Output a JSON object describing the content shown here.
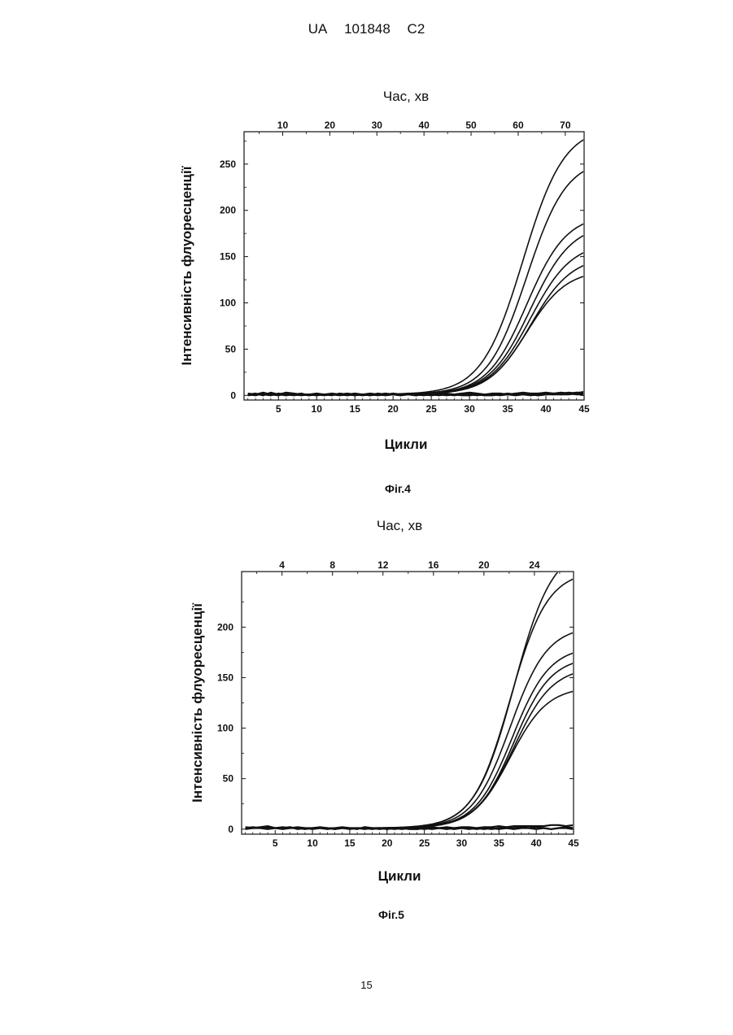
{
  "header": {
    "country": "UA",
    "number": "101848",
    "kind": "C2"
  },
  "page_number": "15",
  "chart_data": [
    {
      "type": "line",
      "caption": "Фіг.4",
      "top_axis": {
        "label": "Час, хв",
        "ticks": [
          10,
          20,
          30,
          40,
          50,
          60,
          70
        ],
        "range": [
          1.8,
          74
        ]
      },
      "xlabel": "Цикли",
      "ylabel": "Інтенсивність флуоресценції",
      "xlim": [
        0.5,
        45
      ],
      "ylim": [
        -5,
        285
      ],
      "x_ticks": [
        5,
        10,
        15,
        20,
        25,
        30,
        35,
        40,
        45
      ],
      "y_ticks": [
        0,
        50,
        100,
        150,
        200,
        250
      ],
      "sigmoid_series": [
        {
          "max": 290,
          "mid": 37.0,
          "slope": 2.7
        },
        {
          "max": 255,
          "mid": 37.5,
          "slope": 2.6
        },
        {
          "max": 195,
          "mid": 37.5,
          "slope": 2.6
        },
        {
          "max": 185,
          "mid": 38.0,
          "slope": 2.7
        },
        {
          "max": 165,
          "mid": 38.0,
          "slope": 2.7
        },
        {
          "max": 150,
          "mid": 38.0,
          "slope": 2.7
        },
        {
          "max": 135,
          "mid": 37.5,
          "slope": 2.6
        }
      ],
      "baseline_series": [
        {
          "y": [
            1,
            2,
            0,
            3,
            1,
            0,
            1,
            2,
            0,
            1,
            1,
            0,
            2,
            1,
            0,
            1,
            2,
            1,
            0,
            1,
            1,
            2,
            1,
            0,
            1,
            2,
            1,
            0,
            1,
            2,
            1,
            0,
            1,
            1,
            2,
            1,
            1,
            0,
            1,
            2,
            1,
            1,
            2,
            1,
            1
          ]
        },
        {
          "y": [
            2,
            1,
            3,
            1,
            0,
            2,
            1,
            0,
            1,
            2,
            1,
            1,
            0,
            1,
            2,
            1,
            0,
            2,
            1,
            1,
            0,
            2,
            1,
            1,
            2,
            1,
            2,
            1,
            2,
            3,
            2,
            1,
            2,
            2,
            1,
            2,
            3,
            2,
            2,
            3,
            2,
            3,
            2,
            3,
            3
          ]
        },
        {
          "y": [
            0,
            1,
            1,
            0,
            2,
            1,
            0,
            1,
            1,
            0,
            1,
            2,
            1,
            0,
            1,
            1,
            0,
            1,
            2,
            1,
            0,
            1,
            0,
            1,
            1,
            0,
            1,
            1,
            0,
            0,
            1,
            0,
            0,
            1,
            1,
            0,
            1,
            1,
            0,
            1,
            2,
            1,
            1,
            2,
            1
          ]
        },
        {
          "y": [
            1,
            0,
            2,
            1,
            1,
            3,
            2,
            1,
            0,
            1,
            0,
            1,
            1,
            2,
            1,
            0,
            1,
            0,
            1,
            2,
            1,
            1,
            0,
            1,
            0,
            1,
            0,
            1,
            2,
            1,
            0,
            1,
            1,
            0,
            1,
            1,
            2,
            1,
            0,
            1,
            1,
            2,
            3,
            2,
            4
          ]
        }
      ]
    },
    {
      "type": "line",
      "caption": "Фіг.5",
      "top_axis": {
        "label": "Час, хв",
        "ticks": [
          4,
          8,
          12,
          16,
          20,
          24
        ],
        "range": [
          0.8,
          27.1
        ]
      },
      "xlabel": "Цикли",
      "ylabel": "Інтенсивність флуоресценції",
      "xlim": [
        0.5,
        45
      ],
      "ylim": [
        -5,
        255
      ],
      "x_ticks": [
        5,
        10,
        15,
        20,
        25,
        30,
        35,
        40,
        45
      ],
      "y_ticks": [
        0,
        50,
        100,
        150,
        200
      ],
      "sigmoid_series": [
        {
          "max": 280,
          "mid": 37.0,
          "slope": 2.6
        },
        {
          "max": 255,
          "mid": 36.5,
          "slope": 2.5
        },
        {
          "max": 200,
          "mid": 36.5,
          "slope": 2.5
        },
        {
          "max": 180,
          "mid": 36.8,
          "slope": 2.5
        },
        {
          "max": 170,
          "mid": 37.0,
          "slope": 2.5
        },
        {
          "max": 160,
          "mid": 37.0,
          "slope": 2.6
        },
        {
          "max": 140,
          "mid": 36.5,
          "slope": 2.5
        }
      ],
      "baseline_series": [
        {
          "y": [
            2,
            1,
            2,
            3,
            1,
            1,
            2,
            0,
            1,
            1,
            2,
            1,
            0,
            1,
            1,
            0,
            2,
            1,
            0,
            1,
            0,
            1,
            1,
            0,
            1,
            2,
            1,
            2,
            1,
            2,
            2,
            1,
            2,
            2,
            3,
            2,
            3,
            3,
            3,
            3,
            3,
            4,
            4,
            3,
            4
          ]
        },
        {
          "y": [
            1,
            2,
            1,
            0,
            1,
            2,
            1,
            1,
            0,
            1,
            1,
            0,
            1,
            2,
            1,
            1,
            0,
            1,
            1,
            0,
            1,
            0,
            1,
            1,
            0,
            1,
            1,
            1,
            0,
            1,
            1,
            0,
            1,
            0,
            1,
            1,
            0,
            1,
            1,
            0,
            1,
            0,
            1,
            1,
            0
          ]
        },
        {
          "y": [
            0,
            1,
            1,
            2,
            1,
            0,
            1,
            2,
            1,
            0,
            1,
            1,
            0,
            1,
            0,
            1,
            1,
            0,
            1,
            0,
            1,
            1,
            0,
            0,
            1,
            0,
            1,
            0,
            1,
            1,
            0,
            1,
            0,
            1,
            0,
            1,
            1,
            2,
            1,
            2,
            1,
            0,
            1,
            2,
            1
          ]
        }
      ]
    }
  ]
}
